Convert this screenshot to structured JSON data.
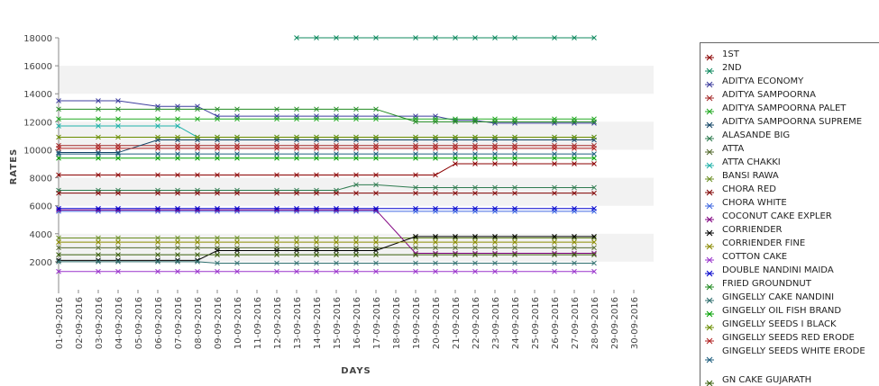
{
  "chart_data": {
    "type": "line",
    "title": "",
    "xlabel": "DAYS",
    "ylabel": "RATES",
    "ylim": [
      0,
      18000
    ],
    "yticks": [
      2000,
      4000,
      6000,
      8000,
      10000,
      12000,
      14000,
      16000,
      18000
    ],
    "grid": "horizontal alternating bands",
    "legend_position": "right",
    "categories": [
      "01-09-2016",
      "02-09-2016",
      "03-09-2016",
      "04-09-2016",
      "05-09-2016",
      "06-09-2016",
      "07-09-2016",
      "08-09-2016",
      "09-09-2016",
      "10-09-2016",
      "11-09-2016",
      "12-09-2016",
      "13-09-2016",
      "14-09-2016",
      "15-09-2016",
      "16-09-2016",
      "17-09-2016",
      "18-09-2016",
      "19-09-2016",
      "20-09-2016",
      "21-09-2016",
      "22-09-2016",
      "23-09-2016",
      "24-09-2016",
      "25-09-2016",
      "26-09-2016",
      "27-09-2016",
      "28-09-2016",
      "29-09-2016",
      "30-09-2016"
    ],
    "series": [
      {
        "name": "1ST",
        "color": "#8b0000",
        "values": [
          8200,
          null,
          8200,
          8200,
          null,
          8200,
          8200,
          8200,
          8200,
          8200,
          null,
          8200,
          8200,
          8200,
          8200,
          8200,
          8200,
          null,
          8200,
          8200,
          9000,
          9000,
          9000,
          9000,
          null,
          9000,
          9000,
          9000,
          null,
          null
        ]
      },
      {
        "name": "2ND",
        "color": "#0f8a5f",
        "values": [
          null,
          null,
          null,
          null,
          null,
          null,
          null,
          null,
          null,
          null,
          null,
          null,
          18000,
          18000,
          18000,
          18000,
          18000,
          null,
          18000,
          18000,
          18000,
          18000,
          18000,
          18000,
          null,
          18000,
          18000,
          18000,
          null,
          null
        ]
      },
      {
        "name": "ADITYA ECONOMY",
        "color": "#3f3f9f",
        "values": [
          13500,
          null,
          13500,
          13500,
          null,
          13100,
          13100,
          13100,
          12400,
          12400,
          null,
          12400,
          12400,
          12400,
          12400,
          12400,
          12400,
          null,
          12400,
          12400,
          12100,
          12100,
          11900,
          11900,
          null,
          11900,
          11900,
          11900,
          null,
          null
        ]
      },
      {
        "name": "ADITYA SAMPOORNA",
        "color": "#a52a2a",
        "values": [
          10300,
          null,
          10300,
          10300,
          null,
          10300,
          10300,
          10300,
          10300,
          10300,
          null,
          10300,
          10300,
          10300,
          10300,
          10300,
          10300,
          null,
          10300,
          10300,
          10300,
          10300,
          10300,
          10300,
          null,
          10300,
          10300,
          10300,
          null,
          null
        ]
      },
      {
        "name": "ADITYA SAMPOORNA PALET",
        "color": "#22aa22",
        "values": [
          12200,
          null,
          12200,
          12200,
          null,
          12200,
          12200,
          12200,
          12200,
          12200,
          null,
          12200,
          12200,
          12200,
          12200,
          12200,
          12200,
          null,
          12200,
          12200,
          12200,
          12200,
          12200,
          12200,
          null,
          12200,
          12200,
          12200,
          null,
          null
        ]
      },
      {
        "name": "ADITYA SAMPOORNA SUPREME",
        "color": "#124466",
        "values": [
          9800,
          null,
          9800,
          9800,
          null,
          10700,
          10700,
          10700,
          10700,
          10700,
          null,
          10700,
          10700,
          10700,
          10700,
          10700,
          10700,
          null,
          10700,
          10700,
          10700,
          10700,
          10700,
          10700,
          null,
          10700,
          10700,
          10700,
          null,
          null
        ]
      },
      {
        "name": "ALASANDE BIG",
        "color": "#2e7b4f",
        "values": [
          7100,
          null,
          7100,
          7100,
          null,
          7100,
          7100,
          7100,
          7100,
          7100,
          null,
          7100,
          7100,
          7100,
          7100,
          7500,
          7500,
          null,
          7300,
          7300,
          7300,
          7300,
          7300,
          7300,
          null,
          7300,
          7300,
          7300,
          null,
          null
        ]
      },
      {
        "name": "ATTA",
        "color": "#556b2f",
        "values": [
          3000,
          null,
          3000,
          3000,
          null,
          3000,
          3000,
          3000,
          3000,
          3000,
          null,
          3000,
          3000,
          3000,
          3000,
          3000,
          3000,
          null,
          3000,
          3000,
          3000,
          3000,
          3000,
          3000,
          null,
          3000,
          3000,
          3000,
          null,
          null
        ]
      },
      {
        "name": "ATTA CHAKKI",
        "color": "#20b2aa",
        "values": [
          11700,
          null,
          11700,
          11700,
          null,
          11700,
          11700,
          10900,
          10900,
          10900,
          null,
          10900,
          10900,
          10900,
          10900,
          10900,
          10900,
          null,
          10900,
          10900,
          10900,
          10900,
          10900,
          10900,
          null,
          10900,
          10900,
          10900,
          null,
          null
        ]
      },
      {
        "name": "BANSI RAWA",
        "color": "#6b8e23",
        "values": [
          3700,
          null,
          3700,
          3700,
          null,
          3700,
          3700,
          3700,
          3700,
          3700,
          null,
          3700,
          3700,
          3700,
          3700,
          3700,
          3700,
          null,
          3700,
          3700,
          3700,
          3700,
          3700,
          3700,
          null,
          3700,
          3700,
          3700,
          null,
          null
        ]
      },
      {
        "name": "CHORA RED",
        "color": "#800000",
        "values": [
          6900,
          null,
          6900,
          6900,
          null,
          6900,
          6900,
          6900,
          6900,
          6900,
          null,
          6900,
          6900,
          6900,
          6900,
          6900,
          6900,
          null,
          6900,
          6900,
          6900,
          6900,
          6900,
          6900,
          null,
          6900,
          6900,
          6900,
          null,
          null
        ]
      },
      {
        "name": "CHORA WHITE",
        "color": "#4169e1",
        "values": [
          5600,
          null,
          5600,
          5600,
          null,
          5600,
          5600,
          5600,
          5600,
          5600,
          null,
          5600,
          5600,
          5600,
          5600,
          5600,
          5600,
          null,
          5600,
          5600,
          5600,
          5600,
          5600,
          5600,
          null,
          5600,
          5600,
          5600,
          null,
          null
        ]
      },
      {
        "name": "COCONUT CAKE EXPLER",
        "color": "#800080",
        "values": [
          5700,
          null,
          5700,
          5700,
          null,
          5700,
          5700,
          5700,
          5700,
          5700,
          null,
          5700,
          5700,
          5700,
          5700,
          5700,
          5700,
          null,
          2600,
          2600,
          2600,
          2600,
          2600,
          2600,
          null,
          2600,
          2600,
          2600,
          null,
          null
        ]
      },
      {
        "name": "CORRIENDER",
        "color": "#000000",
        "values": [
          2100,
          null,
          2100,
          2100,
          null,
          2100,
          2100,
          2100,
          2800,
          2800,
          null,
          2800,
          2800,
          2800,
          2800,
          2800,
          2800,
          null,
          3800,
          3800,
          3800,
          3800,
          3800,
          3800,
          null,
          3800,
          3800,
          3800,
          null,
          null
        ]
      },
      {
        "name": "CORRIENDER FINE",
        "color": "#8b8b00",
        "values": [
          3400,
          null,
          3400,
          3400,
          null,
          3400,
          3400,
          3400,
          3400,
          3400,
          null,
          3400,
          3400,
          3400,
          3400,
          3400,
          3400,
          null,
          3400,
          3400,
          3400,
          3400,
          3400,
          3400,
          null,
          3400,
          3400,
          3400,
          null,
          null
        ]
      },
      {
        "name": "COTTON CAKE",
        "color": "#9932cc",
        "values": [
          1300,
          null,
          1300,
          1300,
          null,
          1300,
          1300,
          1300,
          1300,
          1300,
          null,
          1300,
          1300,
          1300,
          1300,
          1300,
          1300,
          null,
          1300,
          1300,
          1300,
          1300,
          1300,
          1300,
          null,
          1300,
          1300,
          1300,
          null,
          null
        ]
      },
      {
        "name": "DOUBLE NANDINI MAIDA",
        "color": "#0000cd",
        "values": [
          5800,
          null,
          5800,
          5800,
          null,
          5800,
          5800,
          5800,
          5800,
          5800,
          null,
          5800,
          5800,
          5800,
          5800,
          5800,
          5800,
          null,
          5800,
          5800,
          5800,
          5800,
          5800,
          5800,
          null,
          5800,
          5800,
          5800,
          null,
          null
        ]
      },
      {
        "name": "FRIED GROUNDNUT",
        "color": "#228b22",
        "values": [
          12900,
          null,
          12900,
          12900,
          null,
          12900,
          12900,
          12900,
          12900,
          12900,
          null,
          12900,
          12900,
          12900,
          12900,
          12900,
          12900,
          null,
          12000,
          12000,
          12000,
          12000,
          12000,
          12000,
          null,
          12000,
          12000,
          12000,
          null,
          null
        ]
      },
      {
        "name": "GINGELLY CAKE NANDINI",
        "color": "#2f6f6f",
        "values": [
          2000,
          null,
          2000,
          2000,
          null,
          2000,
          2000,
          2000,
          1900,
          1900,
          null,
          1900,
          1900,
          1900,
          1900,
          1900,
          1900,
          null,
          1900,
          1900,
          1900,
          1900,
          1900,
          1900,
          null,
          1900,
          1900,
          1900,
          null,
          null
        ]
      },
      {
        "name": "GINGELLY OIL FISH BRAND",
        "color": "#00a000",
        "values": [
          9400,
          null,
          9400,
          9400,
          null,
          9400,
          9400,
          9400,
          9400,
          9400,
          null,
          9400,
          9400,
          9400,
          9400,
          9400,
          9400,
          null,
          9400,
          9400,
          9400,
          9400,
          9400,
          9400,
          null,
          9400,
          9400,
          9400,
          null,
          null
        ]
      },
      {
        "name": "GINGELLY SEEDS I BLACK",
        "color": "#6b8e00",
        "values": [
          10900,
          null,
          10900,
          10900,
          null,
          10900,
          10900,
          10900,
          10900,
          10900,
          null,
          10900,
          10900,
          10900,
          10900,
          10900,
          10900,
          null,
          10900,
          10900,
          10900,
          10900,
          10900,
          10900,
          null,
          10900,
          10900,
          10900,
          null,
          null
        ]
      },
      {
        "name": "GINGELLY SEEDS RED ERODE",
        "color": "#b22222",
        "values": [
          10100,
          null,
          10100,
          10100,
          null,
          10100,
          10100,
          10100,
          10100,
          10100,
          null,
          10100,
          10100,
          10100,
          10100,
          10100,
          10100,
          null,
          10100,
          10100,
          10100,
          10100,
          10100,
          10100,
          null,
          10100,
          10100,
          10100,
          null,
          null
        ]
      },
      {
        "name": "GINGELLY SEEDS WHITE ERODE",
        "color": "#1f5f7f",
        "values": [
          9700,
          null,
          9700,
          9700,
          null,
          9700,
          9700,
          9700,
          9700,
          9700,
          null,
          9700,
          9700,
          9700,
          9700,
          9700,
          9700,
          null,
          9700,
          9700,
          9700,
          9700,
          9700,
          9700,
          null,
          9700,
          9700,
          9700,
          null,
          null
        ]
      },
      {
        "name": "GN CAKE GUJARATH",
        "color": "#3a5f0b",
        "values": [
          2500,
          null,
          2500,
          2500,
          null,
          2500,
          2500,
          2500,
          2500,
          2500,
          null,
          2500,
          2500,
          2500,
          2500,
          2500,
          2500,
          null,
          2500,
          2500,
          2500,
          2500,
          2500,
          2500,
          null,
          2500,
          2500,
          2500,
          null,
          null
        ]
      }
    ]
  },
  "legend": {
    "items": [
      {
        "label": "1ST",
        "color": "#8b0000"
      },
      {
        "label": "2ND",
        "color": "#0f8a5f"
      },
      {
        "label": "ADITYA ECONOMY",
        "color": "#3f3f9f"
      },
      {
        "label": "ADITYA SAMPOORNA",
        "color": "#a52a2a"
      },
      {
        "label": "ADITYA SAMPOORNA PALET",
        "color": "#22aa22"
      },
      {
        "label": "ADITYA SAMPOORNA SUPREME",
        "color": "#124466"
      },
      {
        "label": "ALASANDE BIG",
        "color": "#2e7b4f"
      },
      {
        "label": "ATTA",
        "color": "#556b2f"
      },
      {
        "label": "ATTA CHAKKI",
        "color": "#20b2aa"
      },
      {
        "label": "BANSI RAWA",
        "color": "#6b8e23"
      },
      {
        "label": "CHORA RED",
        "color": "#800000"
      },
      {
        "label": "CHORA WHITE",
        "color": "#4169e1"
      },
      {
        "label": "COCONUT CAKE EXPLER",
        "color": "#800080"
      },
      {
        "label": "CORRIENDER",
        "color": "#000000"
      },
      {
        "label": "CORRIENDER FINE",
        "color": "#8b8b00"
      },
      {
        "label": "COTTON CAKE",
        "color": "#9932cc"
      },
      {
        "label": "DOUBLE NANDINI MAIDA",
        "color": "#0000cd"
      },
      {
        "label": "FRIED GROUNDNUT",
        "color": "#228b22"
      },
      {
        "label": "GINGELLY CAKE NANDINI",
        "color": "#2f6f6f"
      },
      {
        "label": "GINGELLY OIL FISH BRAND",
        "color": "#00a000"
      },
      {
        "label": "GINGELLY SEEDS I BLACK",
        "color": "#6b8e00"
      },
      {
        "label": "GINGELLY SEEDS RED ERODE",
        "color": "#b22222"
      },
      {
        "label": "GINGELLY SEEDS WHITE ERODE",
        "color": "#1f5f7f"
      },
      {
        "label": "GN CAKE GUJARATH",
        "color": "#3a5f0b"
      }
    ]
  }
}
